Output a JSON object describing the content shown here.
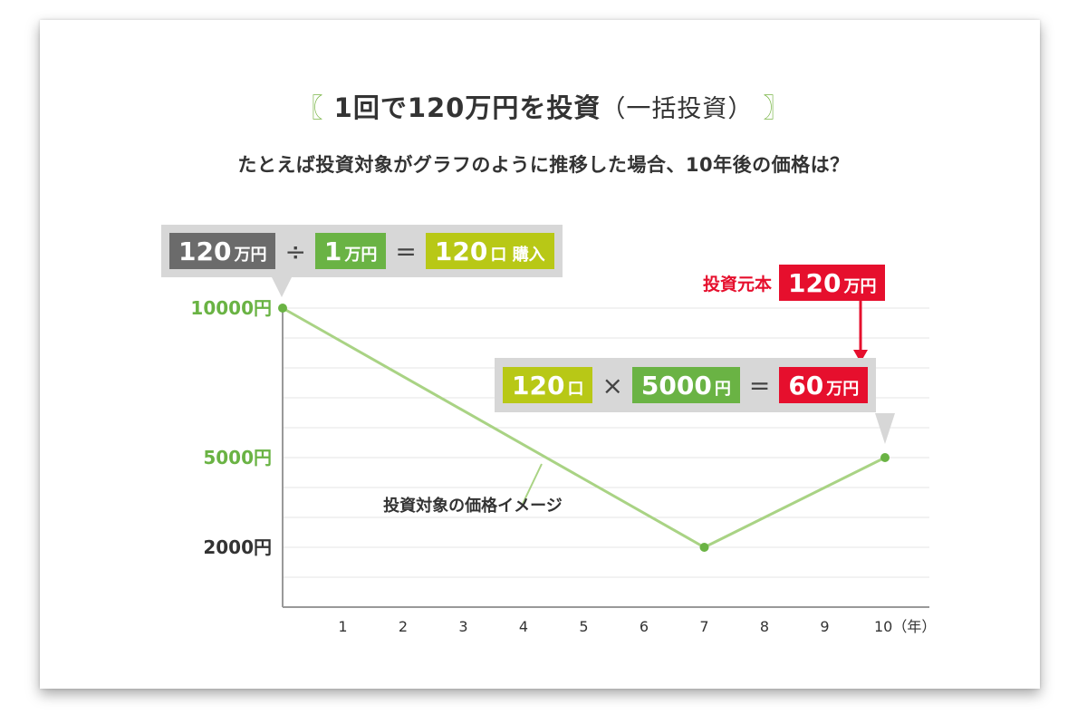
{
  "title": {
    "bracket_open": "〖",
    "main": "1回で120万円を投資",
    "sub": "（一括投資）",
    "bracket_close": "〗"
  },
  "subtitle": "たとえば投資対象がグラフのように推移した場合、10年後の価格は？",
  "eq1": {
    "a": "120",
    "a_unit": "万円",
    "op1": "÷",
    "b": "1",
    "b_unit": "万円",
    "op2": "=",
    "c": "120",
    "c_unit": "口 購入"
  },
  "principal": {
    "label": "投資元本",
    "value": "120",
    "unit": "万円"
  },
  "eq2": {
    "a": "120",
    "a_unit": "口",
    "op1": "×",
    "b": "5000",
    "b_unit": "円",
    "op2": "=",
    "c": "60",
    "c_unit": "万円"
  },
  "chart_data": {
    "type": "line",
    "x": [
      0,
      7,
      10
    ],
    "y": [
      10000,
      2000,
      5000
    ],
    "y_ticks": [
      {
        "v": 10000,
        "label": "10000円"
      },
      {
        "v": 5000,
        "label": "5000円"
      },
      {
        "v": 2000,
        "label": "2000円"
      }
    ],
    "x_ticks": [
      "1",
      "2",
      "3",
      "4",
      "5",
      "6",
      "7",
      "8",
      "9",
      "10（年）"
    ],
    "annotation": "投資対象の価格イメージ",
    "grid": true
  },
  "colors": {
    "line": "#a9d384",
    "point": "#6ab344",
    "ytick": "#6ab344",
    "red": "#e60f2d"
  }
}
